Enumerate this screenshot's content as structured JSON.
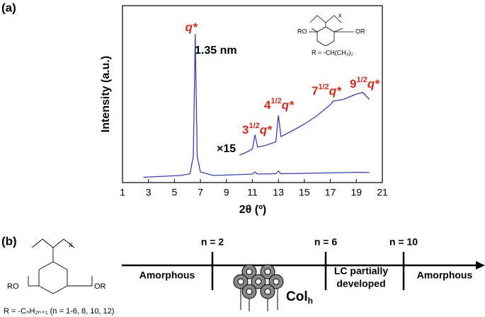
{
  "panel_a": {
    "label": "(a)",
    "inset": {
      "x": "x",
      "left": "RO",
      "right": "OR",
      "r": "R = -CH(CH₃)₂"
    }
  },
  "chart_data": {
    "type": "line",
    "xlabel": "2θ (º)",
    "ylabel": "Intensity (a.u.)",
    "xlim": [
      1,
      21
    ],
    "xticks": [
      1,
      3,
      5,
      7,
      9,
      11,
      13,
      15,
      17,
      19,
      21
    ],
    "ylim": [
      0,
      100
    ],
    "series": [
      {
        "color": "#3a3fb0",
        "x": [
          2.6,
          4,
          5.5,
          6.2,
          6.45,
          6.55,
          6.6,
          6.65,
          6.75,
          7,
          8,
          10,
          11,
          11.2,
          11.4,
          12.8,
          13,
          13.2,
          15,
          17,
          19,
          20
        ],
        "values": [
          3,
          3.5,
          4,
          5,
          15,
          60,
          84,
          60,
          15,
          6,
          4,
          4.5,
          4.8,
          6,
          4.8,
          5,
          6.5,
          5,
          5.2,
          5.5,
          5.8,
          5.7
        ]
      },
      {
        "color": "#3a3fb0",
        "x": [
          10,
          10.5,
          11,
          11.2,
          11.4,
          12,
          12.8,
          13,
          13.2,
          14,
          15,
          16,
          17,
          17.2,
          18,
          19,
          19.5,
          20
        ],
        "values": [
          15.5,
          17,
          19,
          27,
          20,
          21,
          23,
          38,
          26,
          29,
          33,
          38,
          44,
          46,
          47,
          50,
          51,
          47
        ]
      }
    ],
    "annotations": [
      {
        "text": "q*"
      },
      {
        "text": "1.35 nm"
      },
      {
        "text": "×15"
      },
      {
        "base": "3",
        "sup": "1/2",
        "text": "q*"
      },
      {
        "base": "4",
        "sup": "1/2",
        "text": "q*"
      },
      {
        "base": "7",
        "sup": "1/2",
        "text": "q*"
      },
      {
        "base": "9",
        "sup": "1/2",
        "text": "q*"
      }
    ]
  },
  "panel_b": {
    "label": "(b)",
    "structure": {
      "x": "x",
      "left": "RO",
      "right": "OR",
      "r": "R = -CₙH₂ₙ₊₁ (n = 1-6, 8, 10, 12)"
    },
    "boundaries": [
      "n = 2",
      "n = 6",
      "n = 10"
    ],
    "phases": [
      "Amorphous",
      [
        "LC partially",
        "developed"
      ],
      "Amorphous"
    ],
    "col": {
      "base": "Col",
      "sub": "h"
    }
  }
}
